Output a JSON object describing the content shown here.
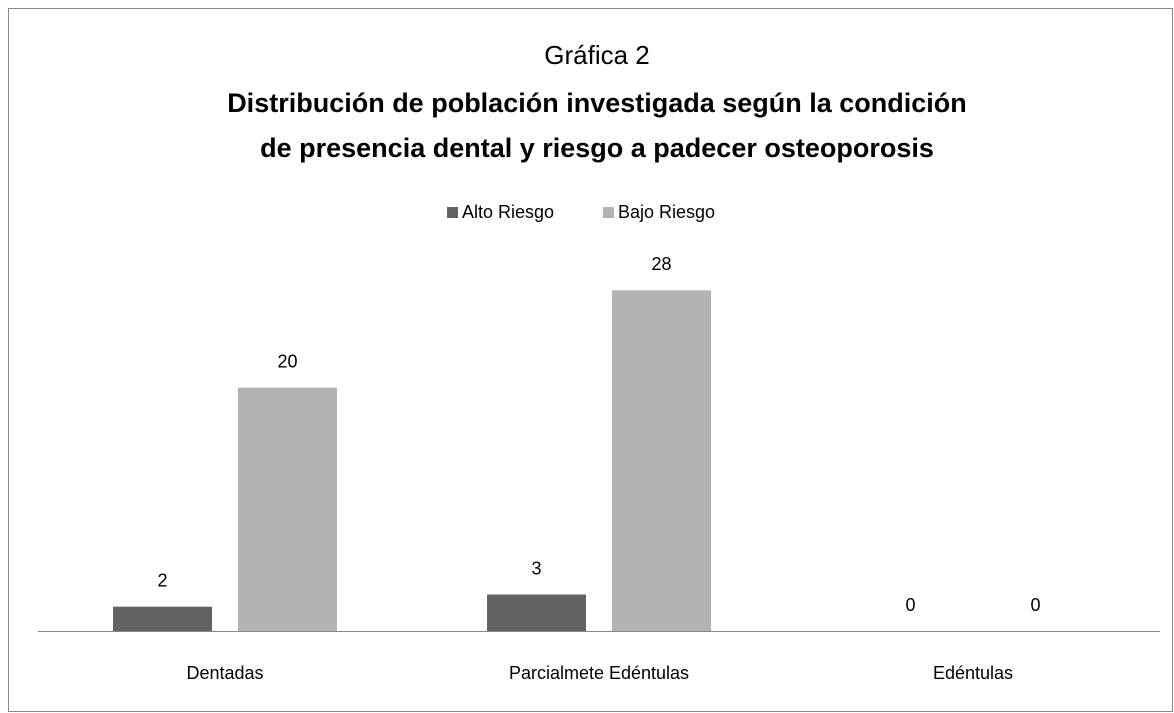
{
  "chart_data": {
    "type": "bar",
    "title": "Gráfica 2",
    "subtitle": [
      "Distribución de población investigada según la condición",
      "de presencia dental y riesgo a padecer osteoporosis"
    ],
    "categories": [
      "Dentadas",
      "Parcialmete Edéntulas",
      "Edéntulas"
    ],
    "series": [
      {
        "name": "Alto Riesgo",
        "color": "#636363",
        "values": [
          2,
          3,
          0
        ]
      },
      {
        "name": "Bajo Riesgo",
        "color": "#b3b3b3",
        "values": [
          20,
          28,
          0
        ]
      }
    ],
    "ylim": [
      0,
      30
    ],
    "legend": "top"
  }
}
